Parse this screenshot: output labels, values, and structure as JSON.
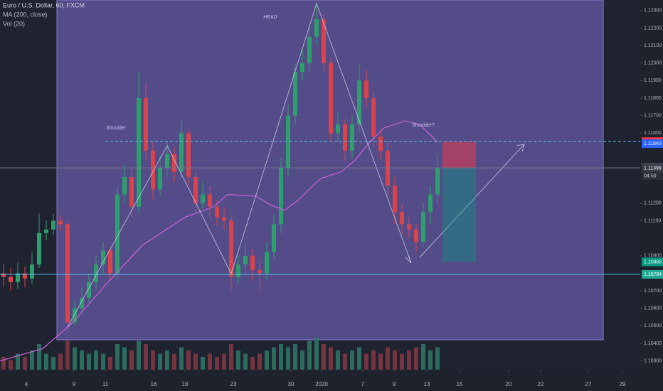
{
  "chart_data": {
    "type": "candlestick",
    "title": "Euro / U.S. Dollar, 60, FXCM",
    "indicators": [
      "MA (200, close)",
      "Vol (20)"
    ],
    "up_color": "#2f9e6e",
    "down_color": "#d9434b",
    "ma_color": "#c45fd6",
    "volume_color": "#2f7d6a",
    "ylim": [
      1.1025,
      1.1236
    ],
    "yticks": [
      {
        "value": 1.123,
        "label": "1.12300"
      },
      {
        "value": 1.122,
        "label": "1.12200"
      },
      {
        "value": 1.121,
        "label": "1.12100"
      },
      {
        "value": 1.12,
        "label": "1.12000"
      },
      {
        "value": 1.119,
        "label": "1.11900"
      },
      {
        "value": 1.118,
        "label": "1.11800"
      },
      {
        "value": 1.117,
        "label": "1.11700"
      },
      {
        "value": 1.116,
        "label": "1.11600"
      },
      {
        "value": 1.112,
        "label": "1.11200"
      },
      {
        "value": 1.111,
        "label": "1.11100"
      },
      {
        "value": 1.109,
        "label": "1.10900"
      },
      {
        "value": 1.107,
        "label": "1.10700"
      },
      {
        "value": 1.106,
        "label": "1.10600"
      },
      {
        "value": 1.105,
        "label": "1.10500"
      },
      {
        "value": 1.104,
        "label": "1.10400"
      },
      {
        "value": 1.103,
        "label": "1.10300"
      }
    ],
    "xlim": [
      0,
      90
    ],
    "xticks": [
      {
        "value": 3.7,
        "label": "4"
      },
      {
        "value": 10.4,
        "label": "9"
      },
      {
        "value": 14.8,
        "label": "11"
      },
      {
        "value": 21.6,
        "label": "16"
      },
      {
        "value": 26,
        "label": "18"
      },
      {
        "value": 32.8,
        "label": "23"
      },
      {
        "value": 40.9,
        "label": "30"
      },
      {
        "value": 45.2,
        "label": "2020"
      },
      {
        "value": 51,
        "label": "7"
      },
      {
        "value": 55.4,
        "label": "9"
      },
      {
        "value": 60,
        "label": "13"
      },
      {
        "value": 64.6,
        "label": "15"
      },
      {
        "value": 71.5,
        "label": "20"
      },
      {
        "value": 76,
        "label": "22"
      },
      {
        "value": 82.7,
        "label": "27"
      },
      {
        "value": 87.5,
        "label": "29"
      }
    ],
    "open": [
      1.108,
      1.1078,
      1.1075,
      1.108,
      1.1077,
      1.1085,
      1.1103,
      1.1105,
      1.111,
      1.1108,
      1.1052,
      1.106,
      1.1066,
      1.1075,
      1.1085,
      1.1093,
      1.108,
      1.1125,
      1.1135,
      1.1118,
      1.118,
      1.115,
      1.1128,
      1.114,
      1.1148,
      1.1138,
      1.116,
      1.1135,
      1.112,
      1.1125,
      1.1118,
      1.1112,
      1.111,
      1.1078,
      1.1085,
      1.109,
      1.1082,
      1.108,
      1.1092,
      1.1108,
      1.114,
      1.117,
      1.1195,
      1.12,
      1.1215,
      1.1225,
      1.12,
      1.116,
      1.1165,
      1.115,
      1.1165,
      1.119,
      1.118,
      1.1158,
      1.115,
      1.113,
      1.1115,
      1.1108,
      1.1105,
      1.1098,
      1.1115,
      1.1125
    ],
    "high": [
      1.1085,
      1.1083,
      1.1086,
      1.1084,
      1.1092,
      1.1114,
      1.111,
      1.1114,
      1.1113,
      1.111,
      1.1064,
      1.1072,
      1.108,
      1.109,
      1.1098,
      1.1095,
      1.113,
      1.1142,
      1.114,
      1.1195,
      1.1188,
      1.1155,
      1.1147,
      1.1155,
      1.1152,
      1.1168,
      1.1162,
      1.1138,
      1.1132,
      1.113,
      1.1122,
      1.1118,
      1.1112,
      1.109,
      1.1098,
      1.1094,
      1.1088,
      1.1098,
      1.1114,
      1.1146,
      1.1176,
      1.12,
      1.1208,
      1.1222,
      1.1234,
      1.1228,
      1.1203,
      1.1172,
      1.1168,
      1.117,
      1.12,
      1.1196,
      1.1184,
      1.1162,
      1.1155,
      1.1135,
      1.112,
      1.1112,
      1.1108,
      1.112,
      1.113,
      1.1148
    ],
    "low": [
      1.1072,
      1.107,
      1.1071,
      1.1072,
      1.1074,
      1.1083,
      1.1099,
      1.1102,
      1.1104,
      1.1046,
      1.105,
      1.1057,
      1.1063,
      1.1071,
      1.108,
      1.1076,
      1.1077,
      1.112,
      1.1112,
      1.1115,
      1.1145,
      1.1122,
      1.1124,
      1.1135,
      1.1132,
      1.1134,
      1.113,
      1.1115,
      1.1117,
      1.1112,
      1.1107,
      1.1105,
      1.107,
      1.1074,
      1.108,
      1.1076,
      1.107,
      1.1076,
      1.1088,
      1.1103,
      1.1135,
      1.1165,
      1.119,
      1.1195,
      1.121,
      1.1195,
      1.1155,
      1.1155,
      1.1144,
      1.1146,
      1.116,
      1.1175,
      1.1152,
      1.1145,
      1.1124,
      1.1108,
      1.1102,
      1.11,
      1.1092,
      1.1095,
      1.1108,
      1.112
    ],
    "close": [
      1.1078,
      1.1075,
      1.108,
      1.1077,
      1.1085,
      1.1103,
      1.1105,
      1.111,
      1.1108,
      1.1052,
      1.106,
      1.1066,
      1.1075,
      1.1085,
      1.1093,
      1.108,
      1.1125,
      1.1135,
      1.1118,
      1.118,
      1.115,
      1.1128,
      1.114,
      1.1148,
      1.1138,
      1.116,
      1.1135,
      1.112,
      1.1125,
      1.1118,
      1.1112,
      1.111,
      1.1078,
      1.1085,
      1.109,
      1.1082,
      1.108,
      1.1092,
      1.1108,
      1.114,
      1.117,
      1.1195,
      1.12,
      1.1215,
      1.1225,
      1.12,
      1.116,
      1.1165,
      1.115,
      1.1165,
      1.119,
      1.118,
      1.1158,
      1.115,
      1.113,
      1.1115,
      1.1108,
      1.1105,
      1.1098,
      1.1115,
      1.1125,
      1.114
    ],
    "volume": [
      4,
      3,
      5,
      4,
      6,
      8,
      5,
      4,
      5,
      9,
      7,
      6,
      5,
      6,
      5,
      4,
      8,
      7,
      6,
      9,
      8,
      6,
      5,
      6,
      5,
      7,
      6,
      5,
      4,
      5,
      4,
      5,
      8,
      6,
      5,
      4,
      5,
      6,
      7,
      8,
      7,
      8,
      6,
      9,
      10,
      8,
      7,
      6,
      5,
      6,
      7,
      5,
      6,
      5,
      7,
      6,
      5,
      6,
      7,
      8,
      6,
      7
    ],
    "ma": {
      "x": [
        0,
        6,
        10,
        15,
        20,
        26,
        30,
        32,
        36,
        38,
        40,
        42,
        45,
        48,
        50,
        52,
        54,
        57,
        59,
        61.5
      ],
      "values": [
        1.103,
        1.1037,
        1.1051,
        1.1074,
        1.1096,
        1.1112,
        1.1118,
        1.1125,
        1.1124,
        1.1119,
        1.1116,
        1.1122,
        1.1134,
        1.1138,
        1.1145,
        1.1155,
        1.1163,
        1.1167,
        1.1165,
        1.1155
      ]
    },
    "price_markers": [
      {
        "value": 1.11552,
        "color": "#f23645",
        "line": "dashed"
      },
      {
        "value": 1.1154,
        "label": "1.11540",
        "color": "#2962ff"
      },
      {
        "value": 1.11402,
        "color": "#787b86",
        "line": "solid"
      },
      {
        "value": 1.11399,
        "color": "#363a45"
      },
      {
        "value": 1.10865,
        "color": "#089981"
      },
      {
        "value": 1.10794,
        "color": "#22ab94",
        "line": "solid-cyan"
      }
    ],
    "countdown": "04:50",
    "annotations": [
      "Shoulder",
      "HEAD",
      "Shoulder?"
    ]
  }
}
